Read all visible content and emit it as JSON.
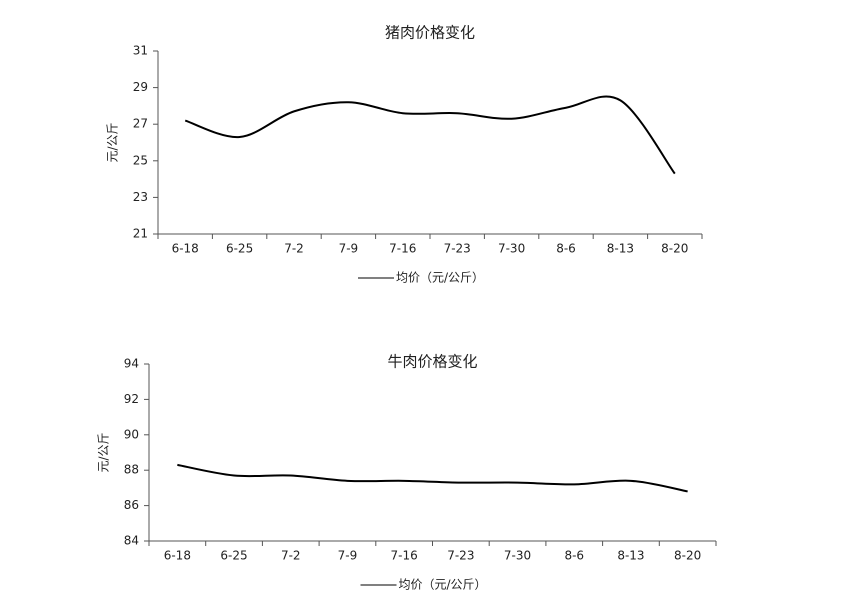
{
  "chart_data": [
    {
      "type": "line",
      "title": "猪肉价格变化",
      "y_label": "元/公斤",
      "categories": [
        "6-18",
        "6-25",
        "7-2",
        "7-9",
        "7-16",
        "7-23",
        "7-30",
        "8-6",
        "8-13",
        "8-20"
      ],
      "series": [
        {
          "name": "均价（元/公斤）",
          "color": "#000000",
          "values": [
            27.2,
            26.3,
            27.7,
            28.2,
            27.6,
            27.6,
            27.3,
            27.9,
            28.3,
            24.3
          ]
        }
      ],
      "ylim": [
        21,
        31
      ],
      "yticks": [
        21,
        23,
        25,
        27,
        29,
        31
      ],
      "grid": false,
      "smooth": true
    },
    {
      "type": "line",
      "title": "牛肉价格变化",
      "y_label": "元/公斤",
      "categories": [
        "6-18",
        "6-25",
        "7-2",
        "7-9",
        "7-16",
        "7-23",
        "7-30",
        "8-6",
        "8-13",
        "8-20"
      ],
      "series": [
        {
          "name": "均价（元/公斤）",
          "color": "#000000",
          "values": [
            88.3,
            87.7,
            87.7,
            87.4,
            87.4,
            87.3,
            87.3,
            87.2,
            87.4,
            86.8
          ]
        }
      ],
      "ylim": [
        84,
        94
      ],
      "yticks": [
        84,
        86,
        88,
        90,
        92,
        94
      ],
      "grid": false,
      "smooth": true
    }
  ]
}
